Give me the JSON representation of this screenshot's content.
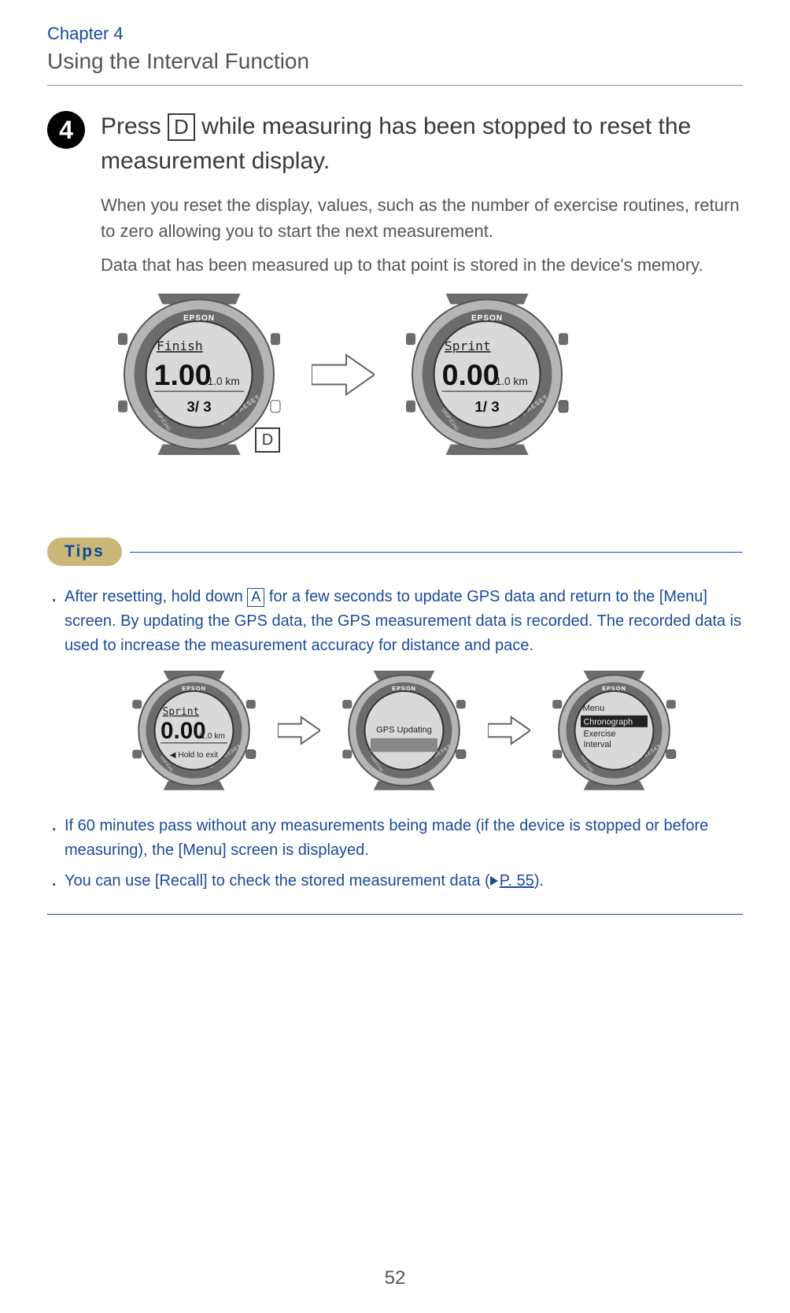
{
  "chapter": "Chapter 4",
  "section": "Using the Interval Function",
  "step": {
    "num": "4",
    "heading_pre": "Press ",
    "heading_key": "D",
    "heading_post": " while measuring has been stopped to reset the measurement display.",
    "para1": "When you reset the display, values, such as the number of exercise routines, return to zero allowing you to start the next measurement.",
    "para2": "Data that has been measured up to that point is stored in the device's memory."
  },
  "watch_brand": "EPSON",
  "watch_left": {
    "line1": "Finish",
    "big": "1.00",
    "unit": "/1.0 km",
    "bottom": "3/ 3",
    "key": "D"
  },
  "watch_right": {
    "line1": "Sprint",
    "big": "0.00",
    "unit": "/1.0 km",
    "bottom": "1/ 3"
  },
  "tips_label": "Tips",
  "tips": {
    "t1_pre": "After resetting, hold down ",
    "t1_key": "A",
    "t1_post": " for a few seconds to update GPS data and return to the [Menu] screen. By updating the GPS data, the GPS measurement data is recorded. The recorded data is used to increase the measurement accuracy for distance and pace.",
    "t2": "If 60 minutes pass without any measurements being made (if the device is stopped or before measuring), the [Menu] screen is displayed.",
    "t3_pre": "You can use [Recall] to check the stored measurement data (",
    "t3_link": "P. 55",
    "t3_post": ")."
  },
  "tip_watch1": {
    "line1": "Sprint",
    "big": "0.00",
    "unit": "/1.0 km",
    "bottom": "◀ Hold to exit"
  },
  "tip_watch2": {
    "line1": "GPS Updating"
  },
  "tip_watch3": {
    "l1": "Menu",
    "l2": "Chronograph",
    "l3": "Exercise",
    "l4": "Interval"
  },
  "page_number": "52",
  "colors": {
    "blue": "#1a4a9c",
    "tan": "#c9b87a",
    "gray_text": "#555",
    "watch_gray": "#b5b5b5",
    "watch_dark": "#6c6c6c",
    "lcd": "#d7dbd6"
  }
}
